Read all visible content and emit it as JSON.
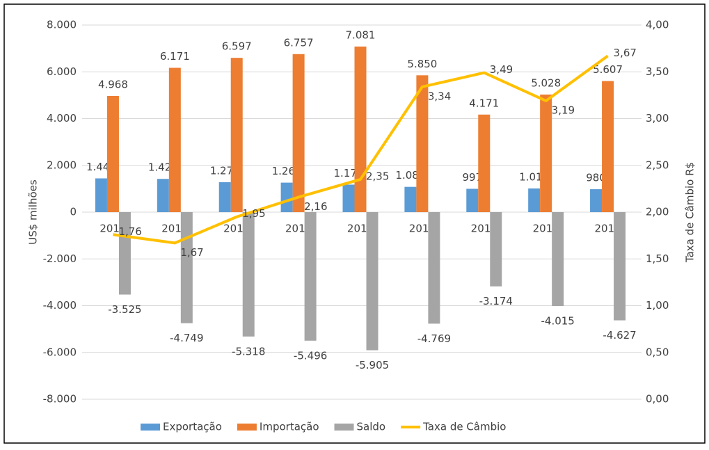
{
  "chart_data": {
    "type": "bar",
    "categories": [
      "2010",
      "2011",
      "2012",
      "2013",
      "2014",
      "2015",
      "2016",
      "2017",
      "2018"
    ],
    "ylabel": "US$ milhões",
    "y2label": "Taxa de Câmbio R$",
    "ylim": [
      -8000,
      8000
    ],
    "yticks": [
      {
        "value": -8000,
        "label": "-8.000"
      },
      {
        "value": -6000,
        "label": "-6.000"
      },
      {
        "value": -4000,
        "label": "-4.000"
      },
      {
        "value": -2000,
        "label": "-2.000"
      },
      0,
      {
        "value": 2000,
        "label": "2.000"
      },
      {
        "value": 4000,
        "label": "4.000"
      },
      {
        "value": 6000,
        "label": "6.000"
      },
      {
        "value": 8000,
        "label": "8.000"
      }
    ],
    "y2lim": [
      0,
      4
    ],
    "y2ticks": [
      {
        "value": 0,
        "label": "0,00"
      },
      {
        "value": 0.5,
        "label": "0,50"
      },
      {
        "value": 1,
        "label": "1,00"
      },
      {
        "value": 1.5,
        "label": "1,50"
      },
      {
        "value": 2,
        "label": "2,00"
      },
      {
        "value": 2.5,
        "label": "2,50"
      },
      {
        "value": 3,
        "label": "3,00"
      },
      {
        "value": 3.5,
        "label": "3,50"
      },
      {
        "value": 4,
        "label": "4,00"
      }
    ],
    "grid": true,
    "legend": "bottom",
    "series": [
      {
        "name": "Exportação",
        "color": "#5b9bd5",
        "type": "bar",
        "values": [
          1443,
          1422,
          1279,
          1261,
          1176,
          1081,
          997,
          1013,
          980
        ],
        "value_labels": [
          "1.443",
          "1.422",
          "1.279",
          "1.261",
          "1.176",
          "1.081",
          "997",
          "1.013",
          "980"
        ]
      },
      {
        "name": "Importação",
        "color": "#ed7d31",
        "type": "bar",
        "values": [
          4968,
          6171,
          6597,
          6757,
          7081,
          5850,
          4171,
          5028,
          5607
        ],
        "value_labels": [
          "4.968",
          "6.171",
          "6.597",
          "6.757",
          "7.081",
          "5.850",
          "4.171",
          "5.028",
          "5.607"
        ]
      },
      {
        "name": "Saldo",
        "color": "#a5a5a5",
        "type": "bar",
        "values": [
          -3525,
          -4749,
          -5318,
          -5496,
          -5905,
          -4769,
          -3174,
          -4015,
          -4627
        ],
        "value_labels": [
          "-3.525",
          "-4.749",
          "-5.318",
          "-5.496",
          "-5.905",
          "-4.769",
          "-3.174",
          "-4.015",
          "-4.627"
        ]
      },
      {
        "name": "Taxa de Câmbio",
        "color": "#ffc000",
        "type": "line",
        "axis": "y2",
        "values": [
          1.76,
          1.67,
          1.95,
          2.16,
          2.35,
          3.34,
          3.49,
          3.19,
          3.67
        ],
        "value_labels": [
          "1,76",
          "1,67",
          "1,95",
          "2,16",
          "2,35",
          "3,34",
          "3,49",
          "3,19",
          "3,67"
        ]
      }
    ]
  }
}
